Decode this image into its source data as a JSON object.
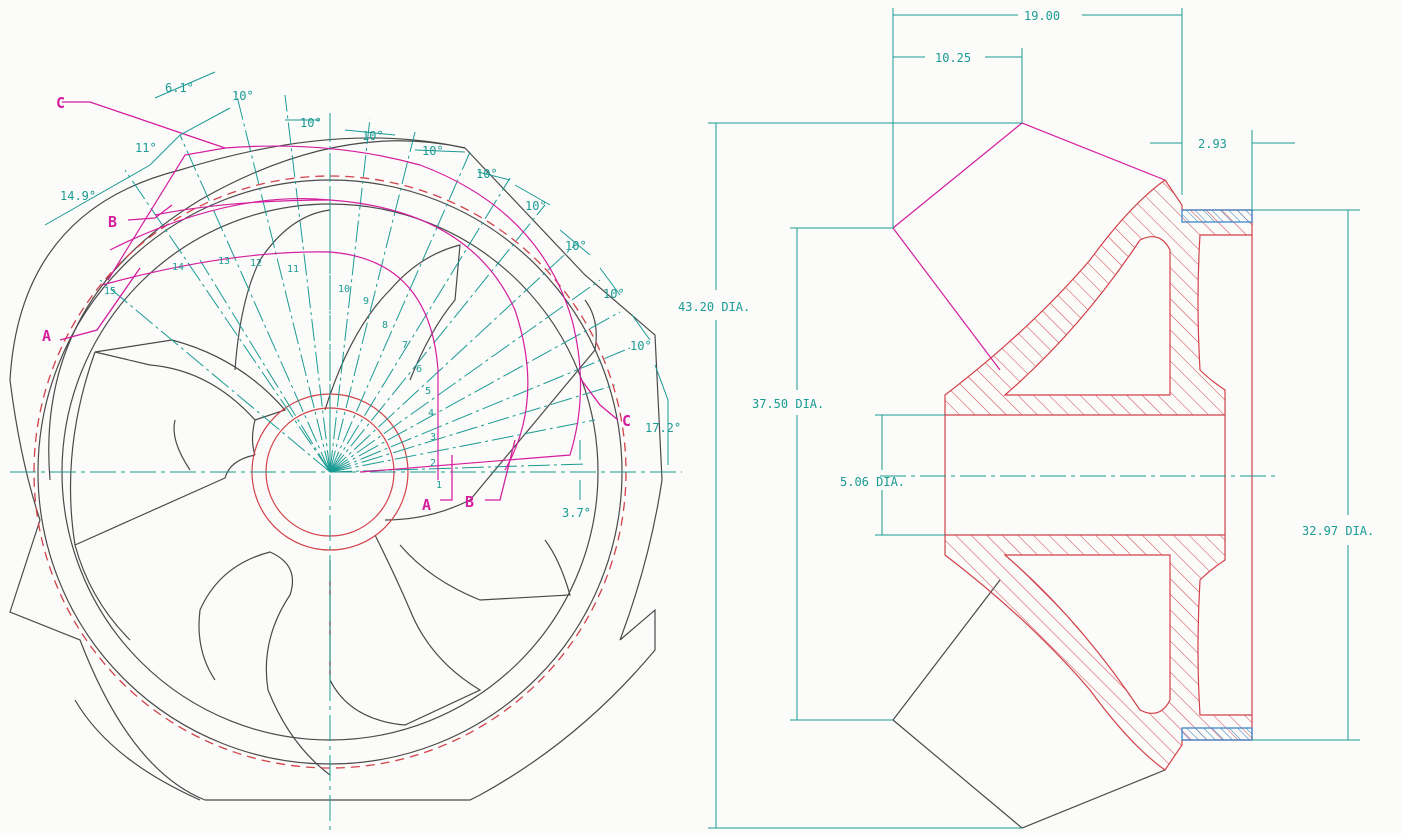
{
  "colors": {
    "background": "#fbfbf9",
    "outline": "#4a4a4a",
    "dimension": "#1a9b93",
    "section": "#d1424a",
    "magenta": "#d41e9e",
    "blue": "#2f7fc7"
  },
  "plan_view": {
    "angles": [
      "6.1°",
      "10°",
      "10°",
      "10°",
      "10°",
      "10°",
      "10°",
      "10°",
      "10°",
      "10°",
      "17.2°",
      "14.9°",
      "11°",
      "3.7°"
    ],
    "station_numbers": [
      "1",
      "2",
      "3",
      "4",
      "5",
      "6",
      "7",
      "8",
      "9",
      "10",
      "11",
      "12",
      "13",
      "14",
      "15"
    ],
    "section_labels": {
      "a_left": "A",
      "b_left": "B",
      "c_left": "C",
      "a_mid": "A",
      "b_mid": "B",
      "c_right": "C"
    }
  },
  "section_view": {
    "dim_top_width": "19.00",
    "dim_vane_width": "10.25",
    "dim_shroud_thickness": "2.93",
    "dim_outer_dia": "43.20 DIA.",
    "dim_eye_dia": "37.50 DIA.",
    "dim_hub_dia": "5.06 DIA.",
    "dim_rim_dia": "32.97 DIA."
  }
}
